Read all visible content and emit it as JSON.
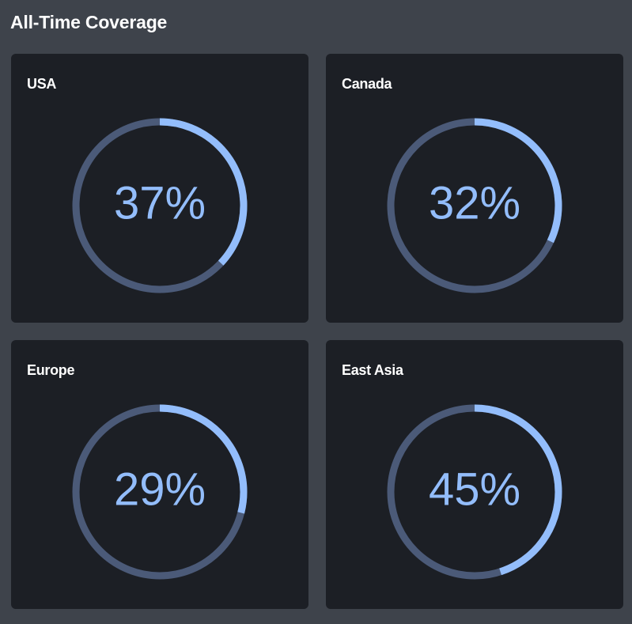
{
  "page": {
    "title": "All-Time Coverage"
  },
  "colors": {
    "background": "#3e434b",
    "card": "#1c1f25",
    "track": "#4b5a78",
    "progress": "#93bdfb",
    "title": "#ffffff"
  },
  "chart_data": [
    {
      "type": "pie",
      "title": "USA",
      "value": 37,
      "label": "37%"
    },
    {
      "type": "pie",
      "title": "Canada",
      "value": 32,
      "label": "32%"
    },
    {
      "type": "pie",
      "title": "Europe",
      "value": 29,
      "label": "29%"
    },
    {
      "type": "pie",
      "title": "East Asia",
      "value": 45,
      "label": "45%"
    }
  ]
}
